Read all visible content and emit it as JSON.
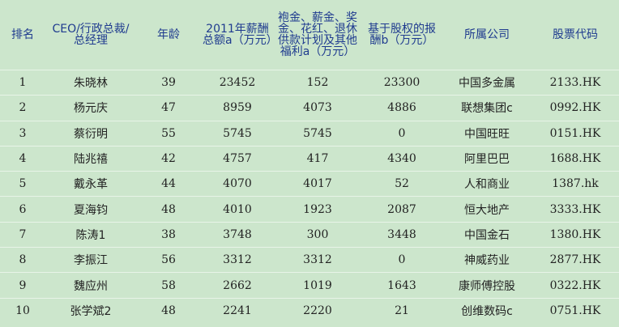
{
  "table": {
    "headers": [
      "排名",
      "CEO/行政总裁/总经理",
      "年龄",
      "2011年薪酬总额a（万元）",
      "袍金、薪金、奖金、花红、退休供款计划及其他福利a（万元）",
      "基于股权的报酬b（万元）",
      "所属公司",
      "股票代码"
    ],
    "rows": [
      [
        "1",
        "朱晓林",
        "39",
        "23452",
        "152",
        "23300",
        "中国多金属",
        "2133.HK"
      ],
      [
        "2",
        "杨元庆",
        "47",
        "8959",
        "4073",
        "4886",
        "联想集团c",
        "0992.HK"
      ],
      [
        "3",
        "蔡衍明",
        "55",
        "5745",
        "5745",
        "0",
        "中国旺旺",
        "0151.HK"
      ],
      [
        "4",
        "陆兆禧",
        "42",
        "4757",
        "417",
        "4340",
        "阿里巴巴",
        "1688.HK"
      ],
      [
        "5",
        "戴永革",
        "44",
        "4070",
        "4017",
        "52",
        "人和商业",
        "1387.hk"
      ],
      [
        "6",
        "夏海钧",
        "48",
        "4010",
        "1923",
        "2087",
        "恒大地产",
        "3333.HK"
      ],
      [
        "7",
        "陈涛1",
        "38",
        "3748",
        "300",
        "3448",
        "中国金石",
        "1380.HK"
      ],
      [
        "8",
        "李振江",
        "56",
        "3312",
        "3312",
        "0",
        "神威药业",
        "2877.HK"
      ],
      [
        "9",
        "魏应州",
        "58",
        "2662",
        "1019",
        "1643",
        "康师傅控股",
        "0322.HK"
      ],
      [
        "10",
        "张学斌2",
        "48",
        "2241",
        "2220",
        "21",
        "创维数码c",
        "0751.HK"
      ]
    ]
  },
  "colors": {
    "background": "#cce6cc",
    "header_text": "#1f3b8f"
  }
}
